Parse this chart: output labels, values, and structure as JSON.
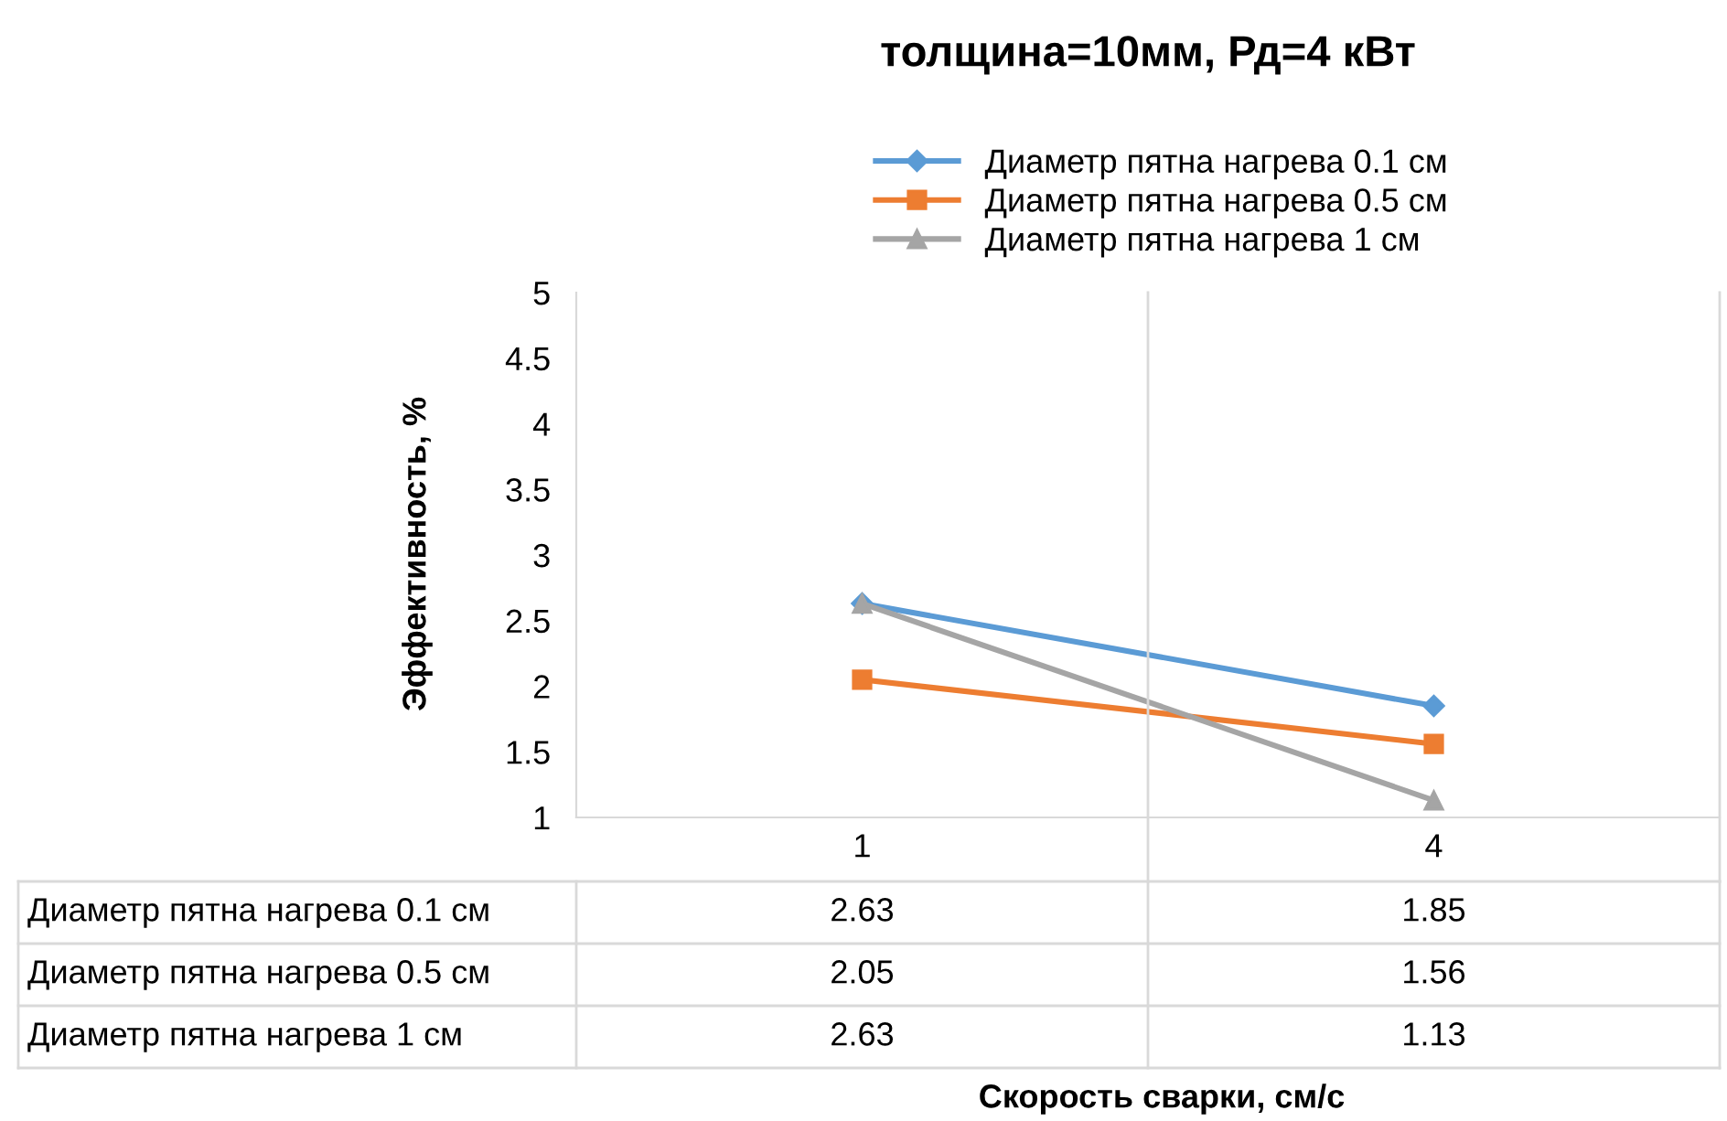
{
  "chart_data": {
    "type": "line",
    "title": "толщина=10мм, Рд=4 кВт",
    "annotations": [
      "Скорость сварки, см/с"
    ],
    "ylabel": "Эффективность, %",
    "categories": [
      "1",
      "4"
    ],
    "series": [
      {
        "name": "Диаметр пятна нагрева 0.1 см",
        "color": "#5b9bd5",
        "marker": "diamond",
        "values": [
          2.63,
          1.85
        ]
      },
      {
        "name": "Диаметр пятна нагрева 0.5 см",
        "color": "#ed7d31",
        "marker": "square",
        "values": [
          2.05,
          1.56
        ]
      },
      {
        "name": "Диаметр пятна нагрева 1 см",
        "color": "#a5a5a5",
        "marker": "triangle",
        "values": [
          2.63,
          1.13
        ]
      }
    ],
    "ylim": [
      1,
      5
    ],
    "yticks": [
      1,
      1.5,
      2,
      2.5,
      3,
      3.5,
      4,
      4.5,
      5
    ],
    "grid": false,
    "legend": "top",
    "data_labels": true
  }
}
